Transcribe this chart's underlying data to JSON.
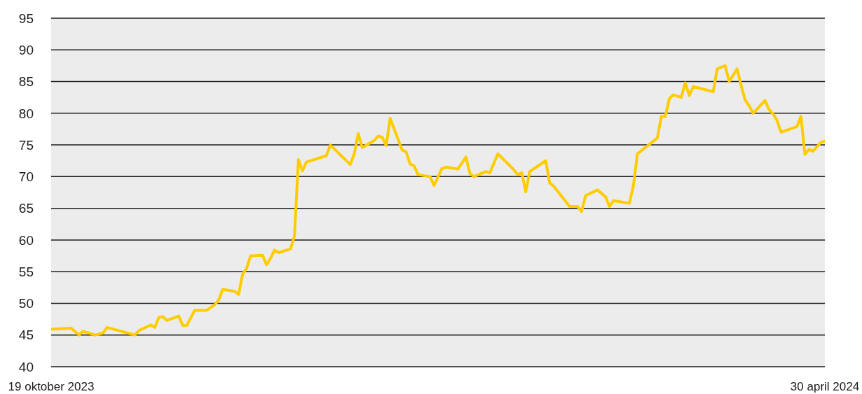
{
  "chart_data": {
    "type": "line",
    "x": [
      "2023-10-19",
      "2023-10-24",
      "2023-10-26",
      "2023-10-27",
      "2023-10-30",
      "2023-11-01",
      "2023-11-02",
      "2023-11-09",
      "2023-11-10",
      "2023-11-13",
      "2023-11-14",
      "2023-11-15",
      "2023-11-16",
      "2023-11-17",
      "2023-11-20",
      "2023-11-21",
      "2023-11-22",
      "2023-11-24",
      "2023-11-27",
      "2023-11-29",
      "2023-11-30",
      "2023-12-01",
      "2023-12-04",
      "2023-12-05",
      "2023-12-06",
      "2023-12-07",
      "2023-12-08",
      "2023-12-11",
      "2023-12-12",
      "2023-12-13",
      "2023-12-14",
      "2023-12-15",
      "2023-12-18",
      "2023-12-19",
      "2023-12-20",
      "2023-12-21",
      "2023-12-22",
      "2023-12-27",
      "2023-12-28",
      "2024-01-02",
      "2024-01-03",
      "2024-01-04",
      "2024-01-05",
      "2024-01-08",
      "2024-01-09",
      "2024-01-10",
      "2024-01-11",
      "2024-01-12",
      "2024-01-15",
      "2024-01-16",
      "2024-01-17",
      "2024-01-18",
      "2024-01-19",
      "2024-01-22",
      "2024-01-23",
      "2024-01-25",
      "2024-01-26",
      "2024-01-29",
      "2024-01-31",
      "2024-02-01",
      "2024-02-02",
      "2024-02-05",
      "2024-02-06",
      "2024-02-08",
      "2024-02-12",
      "2024-02-13",
      "2024-02-14",
      "2024-02-15",
      "2024-02-16",
      "2024-02-20",
      "2024-02-21",
      "2024-02-22",
      "2024-02-26",
      "2024-02-28",
      "2024-02-29",
      "2024-03-01",
      "2024-03-04",
      "2024-03-06",
      "2024-03-07",
      "2024-03-08",
      "2024-03-12",
      "2024-03-13",
      "2024-03-14",
      "2024-03-19",
      "2024-03-20",
      "2024-03-21",
      "2024-03-22",
      "2024-03-23",
      "2024-03-25",
      "2024-03-26",
      "2024-03-27",
      "2024-03-28",
      "2024-04-02",
      "2024-04-03",
      "2024-04-05",
      "2024-04-06",
      "2024-04-08",
      "2024-04-09",
      "2024-04-10",
      "2024-04-11",
      "2024-04-12",
      "2024-04-15",
      "2024-04-16",
      "2024-04-17",
      "2024-04-18",
      "2024-04-19",
      "2024-04-23",
      "2024-04-24",
      "2024-04-25",
      "2024-04-26",
      "2024-04-27",
      "2024-04-29",
      "2024-04-30"
    ],
    "values": [
      45.9,
      46.1,
      45.0,
      45.6,
      45.0,
      45.3,
      46.2,
      45.0,
      45.7,
      46.6,
      46.2,
      47.8,
      47.9,
      47.3,
      48.0,
      46.5,
      46.5,
      48.9,
      48.9,
      49.8,
      50.5,
      52.2,
      51.9,
      51.4,
      54.6,
      55.5,
      57.5,
      57.6,
      56.1,
      57.1,
      58.4,
      58.0,
      58.6,
      60.6,
      72.7,
      70.9,
      72.3,
      73.3,
      75.0,
      71.9,
      73.6,
      76.8,
      74.6,
      75.7,
      76.4,
      76.2,
      74.9,
      79.2,
      74.2,
      73.9,
      72.0,
      71.7,
      70.3,
      70.0,
      68.6,
      71.3,
      71.5,
      71.2,
      73.1,
      70.5,
      70.0,
      70.8,
      70.6,
      73.6,
      71.1,
      70.3,
      70.6,
      67.6,
      70.8,
      72.5,
      69.0,
      68.5,
      65.3,
      65.3,
      64.5,
      67.0,
      67.9,
      66.8,
      65.3,
      66.2,
      65.8,
      68.6,
      73.6,
      76.1,
      79.5,
      79.5,
      82.3,
      82.9,
      82.5,
      84.8,
      82.8,
      84.2,
      83.4,
      87.0,
      87.5,
      85.0,
      87.0,
      84.4,
      82.1,
      81.2,
      80.0,
      82.0,
      80.6,
      79.9,
      78.9,
      77.0,
      77.9,
      79.5,
      73.5,
      74.3,
      74.0,
      75.4,
      75.6
    ],
    "color": "#ffcc00",
    "xlim": [
      "2023-10-19",
      "2024-04-30"
    ],
    "xticks": [
      {
        "value": "2023-10-19",
        "label": "19 oktober 2023"
      },
      {
        "value": "2024-04-30",
        "label": "30 april 2024"
      }
    ],
    "ylim": [
      40,
      95
    ],
    "yticks": [
      40,
      45,
      50,
      55,
      60,
      65,
      70,
      75,
      80,
      85,
      90,
      95
    ],
    "grid": "y",
    "marker": "none"
  }
}
